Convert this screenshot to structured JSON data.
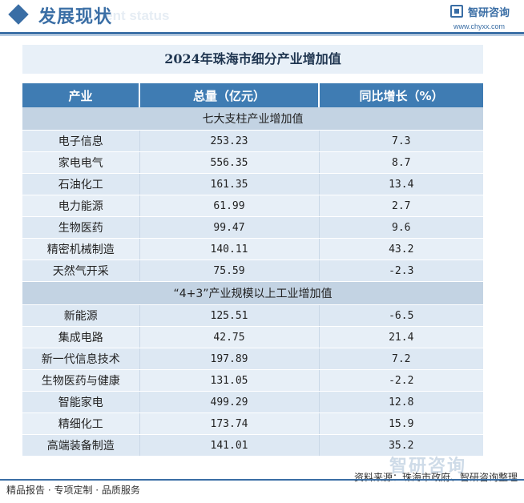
{
  "header": {
    "title": "发展现状",
    "subtitle_ghost": "ment status",
    "brand_name": "智研咨询",
    "brand_url": "www.chyxx.com"
  },
  "table": {
    "title": "2024年珠海市细分产业增加值",
    "columns": [
      "产业",
      "总量（亿元）",
      "同比增长（%）"
    ],
    "sections": [
      {
        "label": "七大支柱产业增加值",
        "rows": [
          [
            "电子信息",
            "253.23",
            "7.3"
          ],
          [
            "家电电气",
            "556.35",
            "8.7"
          ],
          [
            "石油化工",
            "161.35",
            "13.4"
          ],
          [
            "电力能源",
            "61.99",
            "2.7"
          ],
          [
            "生物医药",
            "99.47",
            "9.6"
          ],
          [
            "精密机械制造",
            "140.11",
            "43.2"
          ],
          [
            "天然气开采",
            "75.59",
            "-2.3"
          ]
        ]
      },
      {
        "label": "“4+3”产业规模以上工业增加值",
        "rows": [
          [
            "新能源",
            "125.51",
            "-6.5"
          ],
          [
            "集成电路",
            "42.75",
            "21.4"
          ],
          [
            "新一代信息技术",
            "197.89",
            "7.2"
          ],
          [
            "生物医药与健康",
            "131.05",
            "-2.2"
          ],
          [
            "智能家电",
            "499.29",
            "12.8"
          ],
          [
            "精细化工",
            "173.74",
            "15.9"
          ],
          [
            "高端装备制造",
            "141.01",
            "35.2"
          ]
        ]
      }
    ]
  },
  "footer": {
    "left": "精品报告 · 专项定制 · 品质服务",
    "source": "资料来源：珠海市政府、智研咨询整理",
    "watermark": "智研咨询"
  },
  "colors": {
    "accent": "#3a6ea5",
    "header_row": "#3f7cb3",
    "section_row": "#c3d3e3",
    "data_row": "#dde8f3"
  }
}
